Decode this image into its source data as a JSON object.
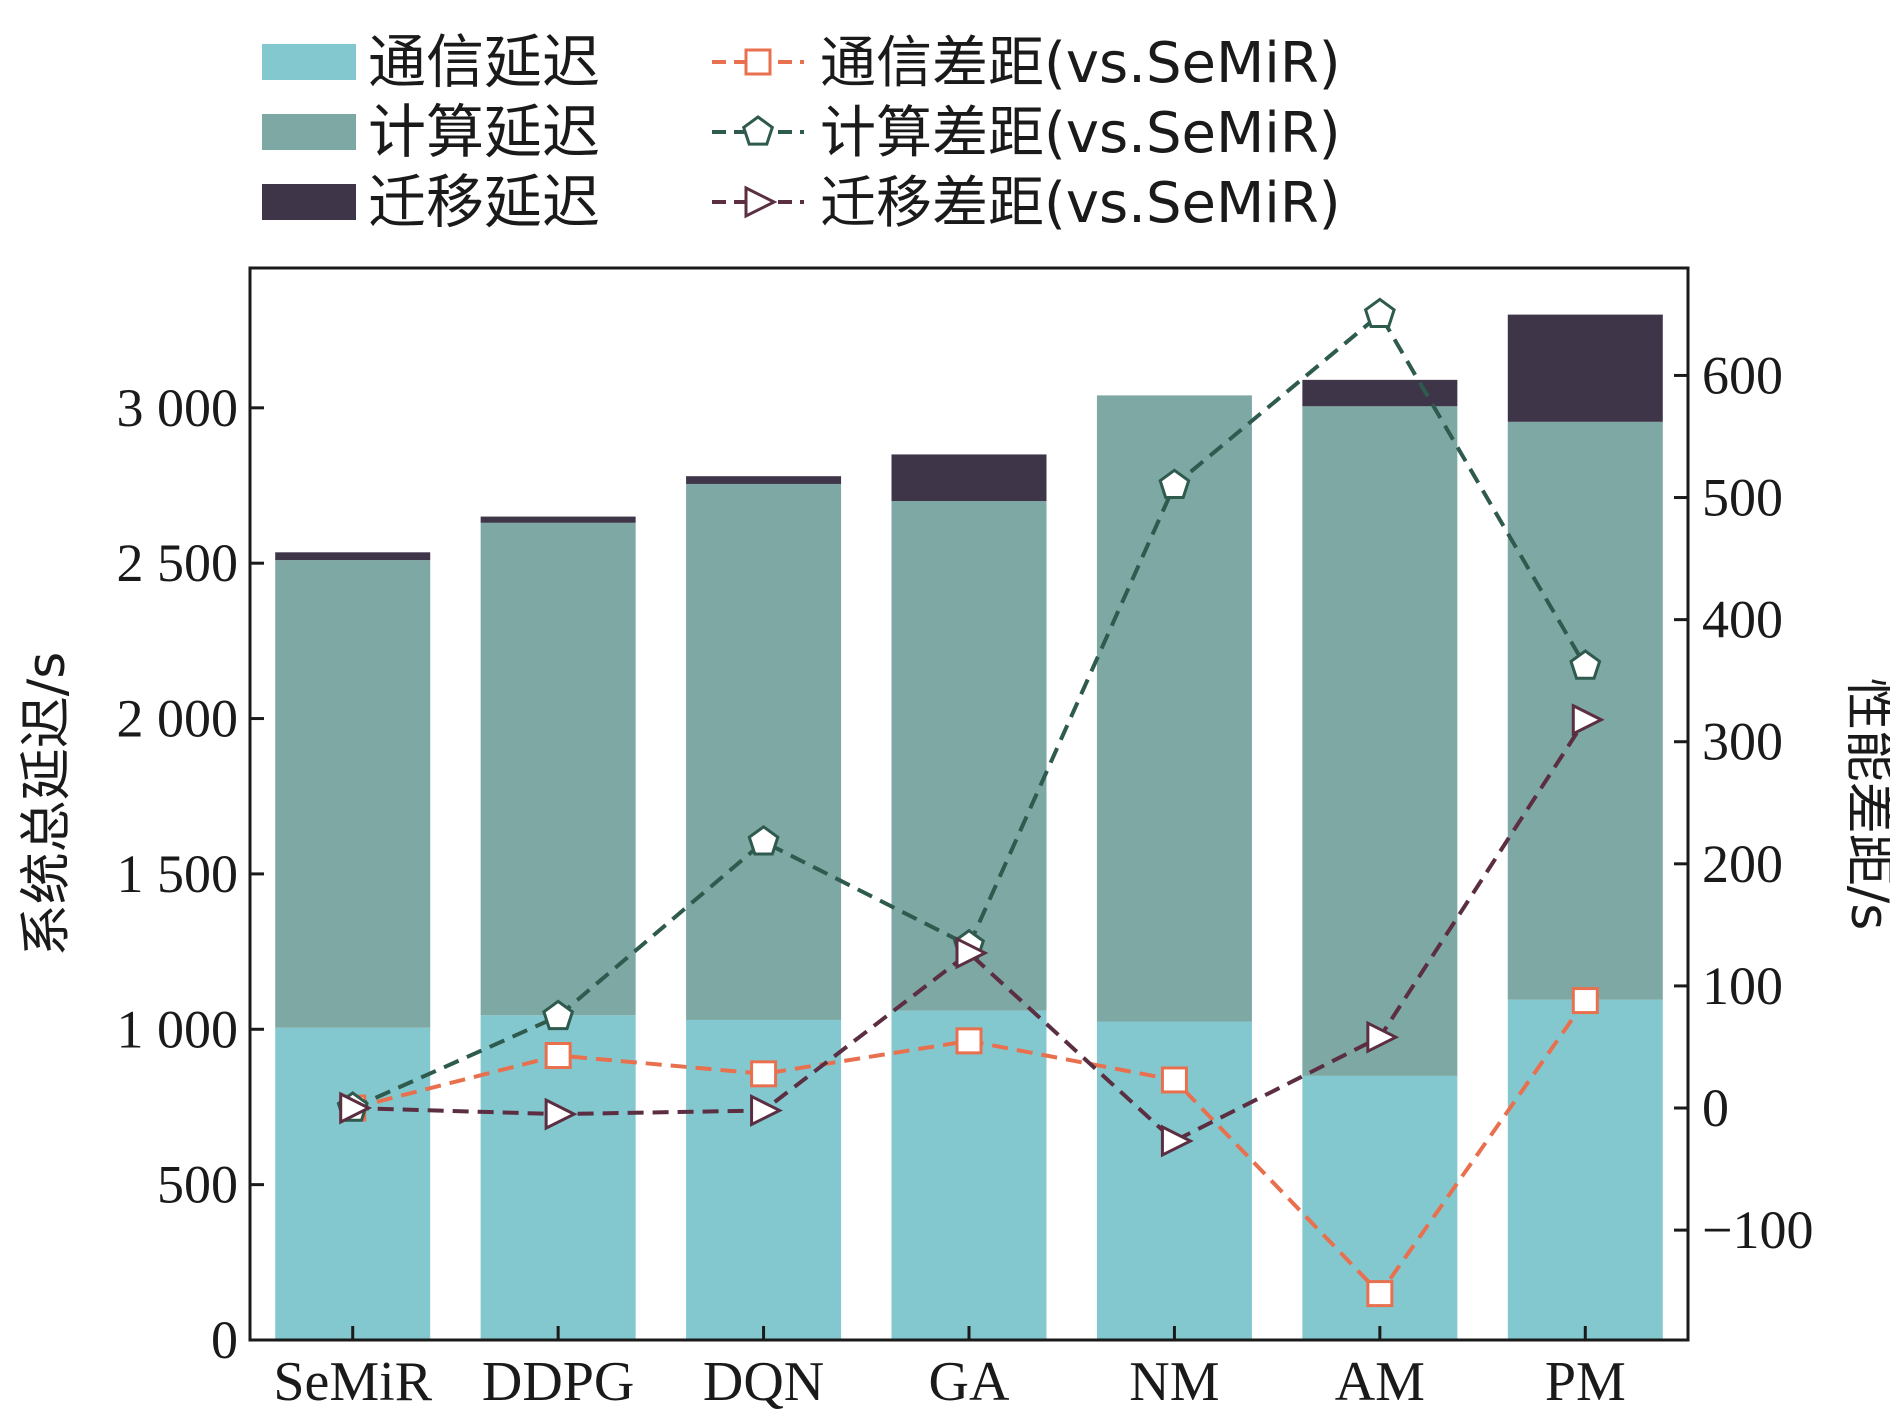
{
  "chart_data": {
    "type": "bar",
    "stacked": true,
    "categories": [
      "SeMiR",
      "DDPG",
      "DQN",
      "GA",
      "NM",
      "AM",
      "PM"
    ],
    "ylabel": "系统总延迟/s",
    "y2label": "性能差距/s",
    "ylim": [
      0,
      3450
    ],
    "y2lim": [
      -190,
      688
    ],
    "yticks": [
      0,
      500,
      1000,
      1500,
      2000,
      2500,
      3000
    ],
    "ytick_labels": [
      "0",
      "500",
      "1 000",
      "1 500",
      "2 000",
      "2 500",
      "3 000"
    ],
    "y2ticks": [
      -100,
      0,
      100,
      200,
      300,
      400,
      500,
      600
    ],
    "y2tick_labels": [
      "−100",
      "0",
      "100",
      "200",
      "300",
      "400",
      "500",
      "600"
    ],
    "series": [
      {
        "name": "通信延迟",
        "type": "bar",
        "color": "#84c8cf",
        "values": [
          1005,
          1045,
          1030,
          1060,
          1025,
          850,
          1095
        ]
      },
      {
        "name": "计算延迟",
        "type": "bar",
        "color": "#7ea8a4",
        "values": [
          1505,
          1585,
          1725,
          1640,
          2015,
          2155,
          1860
        ]
      },
      {
        "name": "迁移延迟",
        "type": "bar",
        "color": "#3e3549",
        "values": [
          25,
          20,
          25,
          150,
          0,
          85,
          345
        ]
      }
    ],
    "gap_series": [
      {
        "name": "通信差距(vs.SeMiR)",
        "type": "line",
        "marker": "square",
        "color": "#e8704f",
        "values": [
          0,
          43,
          28,
          55,
          23,
          -152,
          88
        ]
      },
      {
        "name": "计算差距(vs.SeMiR)",
        "type": "line",
        "marker": "pentagon",
        "color": "#2f5a4e",
        "values": [
          0,
          75,
          218,
          133,
          510,
          650,
          362
        ]
      },
      {
        "name": "迁移差距(vs.SeMiR)",
        "type": "line",
        "marker": "triangle-right",
        "color": "#5b2e42",
        "values": [
          0,
          -5,
          -2,
          127,
          -27,
          58,
          318
        ]
      }
    ],
    "legend": "top",
    "grid": false
  }
}
